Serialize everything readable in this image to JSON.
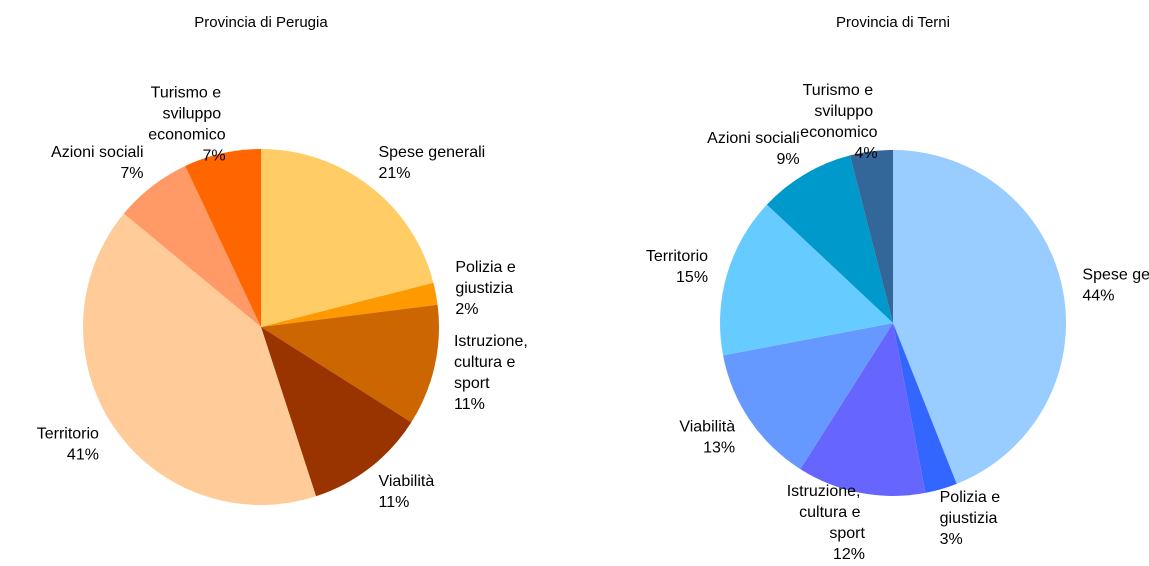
{
  "chart_data": [
    {
      "type": "pie",
      "title": "Provincia di Perugia",
      "categories": [
        "Spese generali",
        "Polizia e giustizia",
        "Istruzione, cultura e sport",
        "Viabilità",
        "Territorio",
        "Azioni sociali",
        "Turismo e sviluppo economico"
      ],
      "values": [
        21,
        2,
        11,
        11,
        41,
        7,
        7
      ],
      "value_labels": [
        "21%",
        "2%",
        "11%",
        "11%",
        "41%",
        "7%",
        "7%"
      ],
      "colors": [
        "#FFCC66",
        "#FF9900",
        "#CC6600",
        "#993300",
        "#FFCC99",
        "#FF9966",
        "#FF6600"
      ]
    },
    {
      "type": "pie",
      "title": "Provincia di Terni",
      "categories": [
        "Spese generali",
        "Polizia e giustizia",
        "Istruzione, cultura e sport",
        "Viabilità",
        "Territorio",
        "Azioni sociali",
        "Turismo e sviluppo economico"
      ],
      "values": [
        44,
        3,
        12,
        13,
        15,
        9,
        4
      ],
      "value_labels": [
        "44%",
        "3%",
        "12%",
        "13%",
        "15%",
        "9%",
        "4%"
      ],
      "colors": [
        "#99CCFF",
        "#3366FF",
        "#6666FF",
        "#6699FF",
        "#66CCFF",
        "#0099CC",
        "#336699"
      ]
    }
  ]
}
